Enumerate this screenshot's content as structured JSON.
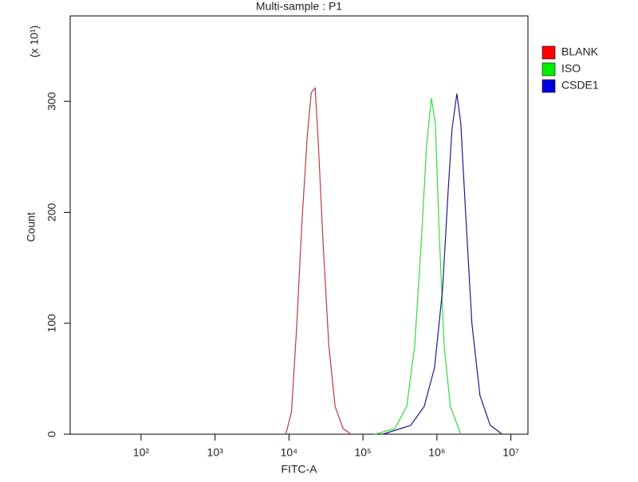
{
  "chart_data": {
    "type": "line",
    "title": "Multi-sample : P1",
    "x_label": "FITC-A",
    "y_label": "Count",
    "y_multiplier": "(x 10¹)",
    "x_scale": "log",
    "xlim": [
      11,
      17000000
    ],
    "ylim": [
      0,
      377
    ],
    "xticks": [
      {
        "value": 100,
        "label": "10²"
      },
      {
        "value": 1000,
        "label": "10³"
      },
      {
        "value": 10000,
        "label": "10⁴"
      },
      {
        "value": 100000,
        "label": "10⁵"
      },
      {
        "value": 1000000,
        "label": "10⁶"
      },
      {
        "value": 10000000,
        "label": "10⁷"
      }
    ],
    "yticks": [
      0,
      100,
      200,
      300
    ],
    "legend": "right",
    "series": [
      {
        "name": "BLANK",
        "color": "#c0393b",
        "legend_color": "#ff0000",
        "x": [
          9060,
          10800,
          12800,
          14900,
          17700,
          20000,
          22600,
          25000,
          29000,
          34500,
          42000,
          53800,
          69000
        ],
        "values": [
          0,
          20,
          100,
          190,
          270,
          308,
          312,
          260,
          170,
          80,
          25,
          5,
          0
        ]
      },
      {
        "name": "ISO",
        "color": "#33dd33",
        "legend_color": "#00ee00",
        "x": [
          145000,
          269000,
          390000,
          500000,
          610000,
          725000,
          841000,
          951000,
          1076000,
          1250000,
          1520000,
          2100000
        ],
        "values": [
          0,
          5,
          25,
          80,
          170,
          260,
          303,
          280,
          180,
          80,
          25,
          0
        ]
      },
      {
        "name": "CSDE1",
        "color": "#1a1a8c",
        "legend_color": "#0000dd",
        "x": [
          186000,
          442000,
          673000,
          929000,
          1190000,
          1420000,
          1600000,
          1860000,
          2100000,
          2440000,
          2970000,
          3810000,
          5250000,
          7620000
        ],
        "values": [
          0,
          8,
          25,
          60,
          130,
          220,
          275,
          307,
          280,
          200,
          100,
          35,
          8,
          0
        ]
      }
    ]
  }
}
